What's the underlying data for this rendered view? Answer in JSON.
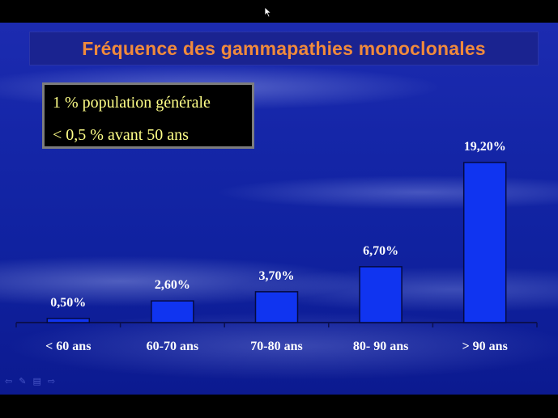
{
  "slide": {
    "title": "Fréquence des gammapathies monoclonales",
    "info": [
      "1 % population générale",
      "< 0,5 % avant 50 ans"
    ]
  },
  "colors": {
    "bar": "#1034f0",
    "bar_stroke": "#050a40",
    "title_text": "#f08a3c",
    "info_text": "#ffff88",
    "label_text": "#ffffff"
  },
  "chart_data": {
    "type": "bar",
    "categories": [
      "< 60 ans",
      "60-70 ans",
      "70-80 ans",
      "80- 90 ans",
      "> 90 ans"
    ],
    "values": [
      0.5,
      2.6,
      3.7,
      6.7,
      19.2
    ],
    "data_labels": [
      "0,50%",
      "2,60%",
      "3,70%",
      "6,70%",
      "19,20%"
    ],
    "title": "",
    "xlabel": "",
    "ylabel": "",
    "ylim": [
      0,
      20
    ],
    "grid": false,
    "legend": "none"
  },
  "nav_icons": [
    "prev-arrow-icon",
    "pen-icon",
    "menu-icon",
    "next-arrow-icon"
  ]
}
